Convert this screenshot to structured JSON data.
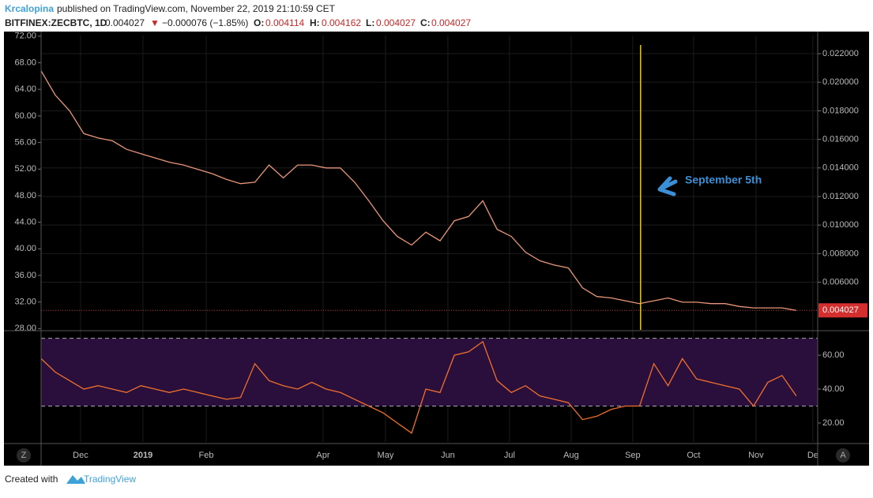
{
  "header": {
    "author": "Krcalopina",
    "published": "published on TradingView.com, November 22, 2019 21:10:59 CET",
    "symbol": "BITFINEX:ZECBTC, 1D",
    "last": "0.004027",
    "arrow": "▼",
    "change": "−0.000076 (−1.85%)",
    "o_label": "O:",
    "o": "0.004114",
    "h_label": "H:",
    "h": "0.004162",
    "l_label": "L:",
    "l": "0.004027",
    "c_label": "C:",
    "c": "0.004027"
  },
  "chart_data": [
    {
      "type": "line",
      "series": [
        {
          "color": "#e9967a",
          "values": [
            0.0208,
            0.0191,
            0.018,
            0.0164,
            0.0161,
            0.0159,
            0.0153,
            0.015,
            0.0147,
            0.0144,
            0.0142,
            0.0139,
            0.0136,
            0.0132,
            0.0129,
            0.013,
            0.0142,
            0.0133,
            0.0142,
            0.0142,
            0.014,
            0.014,
            0.013,
            0.0117,
            0.0103,
            0.0092,
            0.0086,
            0.0095,
            0.0089,
            0.0103,
            0.0106,
            0.0117,
            0.0097,
            0.0092,
            0.0081,
            0.0075,
            0.0072,
            0.007,
            0.0056,
            0.005,
            0.0049,
            0.0047,
            0.0045,
            0.0047,
            0.0049,
            0.0046,
            0.0046,
            0.0045,
            0.0045,
            0.0043,
            0.0042,
            0.0042,
            0.0042,
            0.004027
          ]
        }
      ],
      "xlim": [
        0,
        54.5
      ],
      "xticks": [
        {
          "value": 2.77,
          "label": "Dec"
        },
        {
          "value": 7.15,
          "label": "2019"
        },
        {
          "value": 11.59,
          "label": "Feb"
        },
        {
          "value": 19.79,
          "label": "Apr"
        },
        {
          "value": 24.17,
          "label": "May"
        },
        {
          "value": 28.55,
          "label": "Jun"
        },
        {
          "value": 32.87,
          "label": "Jul"
        },
        {
          "value": 37.2,
          "label": "Aug"
        },
        {
          "value": 41.52,
          "label": "Sep"
        },
        {
          "value": 45.79,
          "label": "Oct"
        },
        {
          "value": 50.17,
          "label": "Nov"
        },
        {
          "value": 54.16,
          "label": "De"
        }
      ],
      "ylim": [
        0.00266,
        0.02327
      ],
      "yticks": [
        {
          "value": 0.006,
          "label": "0.006000"
        },
        {
          "value": 0.008,
          "label": "0.008000"
        },
        {
          "value": 0.01,
          "label": "0.010000"
        },
        {
          "value": 0.012,
          "label": "0.012000"
        },
        {
          "value": 0.014,
          "label": "0.014000"
        },
        {
          "value": 0.016,
          "label": "0.016000"
        },
        {
          "value": 0.018,
          "label": "0.018000"
        },
        {
          "value": 0.02,
          "label": "0.020000"
        },
        {
          "value": 0.022,
          "label": "0.022000"
        }
      ],
      "y2lim": [
        27.8,
        72.1
      ],
      "y2ticks": [
        {
          "value": 28,
          "label": "28.00"
        },
        {
          "value": 32,
          "label": "32.00"
        },
        {
          "value": 36,
          "label": "36.00"
        },
        {
          "value": 40,
          "label": "40.00"
        },
        {
          "value": 44,
          "label": "44.00"
        },
        {
          "value": 48,
          "label": "48.00"
        },
        {
          "value": 52,
          "label": "52.00"
        },
        {
          "value": 56,
          "label": "56.00"
        },
        {
          "value": 60,
          "label": "60.00"
        },
        {
          "value": 64,
          "label": "64.00"
        },
        {
          "value": 68,
          "label": "68.00"
        },
        {
          "value": 72,
          "label": "72.00"
        }
      ],
      "grid": true,
      "price_line_color": "#d32f2f",
      "annotation": {
        "text": "September 5th",
        "x": 42.07,
        "color": "#e6c619"
      }
    },
    {
      "type": "line",
      "series": [
        {
          "color": "#f0702a",
          "values": [
            58,
            50,
            45,
            40,
            42,
            40,
            38,
            42,
            40,
            38,
            40,
            38,
            36,
            34,
            35,
            55,
            45,
            42,
            40,
            44,
            40,
            38,
            34,
            30,
            26,
            20,
            14,
            40,
            38,
            60,
            62,
            68,
            45,
            38,
            42,
            36,
            34,
            32,
            22,
            24,
            28,
            30,
            30,
            55,
            42,
            58,
            46,
            44,
            42,
            40,
            30,
            44,
            48,
            36
          ]
        }
      ],
      "xlim": [
        0,
        54.5
      ],
      "ylim": [
        8.8,
        74
      ],
      "yticks": [
        {
          "value": 20,
          "label": "20.00"
        },
        {
          "value": 40,
          "label": "40.00"
        },
        {
          "value": 60,
          "label": "60.00"
        }
      ],
      "bands": [
        30,
        70
      ],
      "band_color": "#2a0f3d"
    }
  ],
  "buttons": {
    "left": "Z",
    "right": "A"
  },
  "footer": {
    "created": "Created with",
    "brand": "TradingView"
  }
}
